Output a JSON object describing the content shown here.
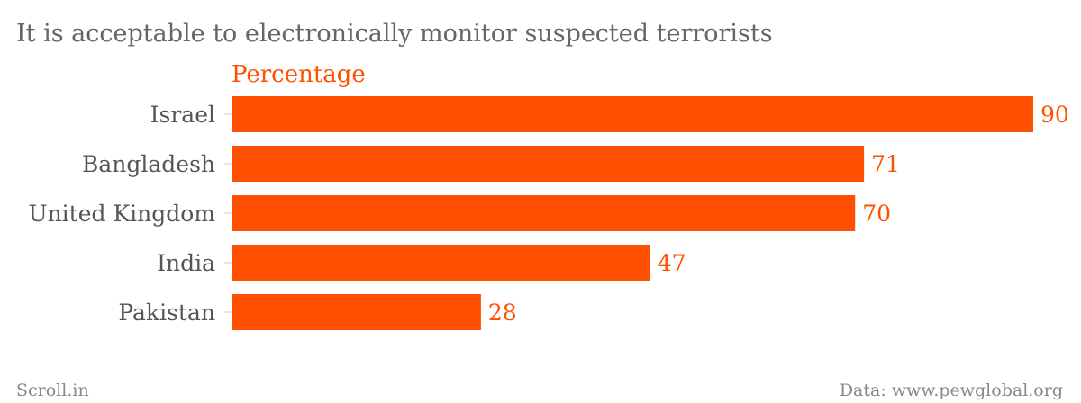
{
  "chart_data": {
    "type": "bar",
    "orientation": "horizontal",
    "title": "It is acceptable to electronically monitor suspected terrorists",
    "categories": [
      "Israel",
      "Bangladesh",
      "United Kingdom",
      "India",
      "Pakistan"
    ],
    "series": [
      {
        "name": "Percentage",
        "values": [
          90,
          71,
          70,
          47,
          28
        ]
      }
    ],
    "xlim": [
      0,
      90
    ],
    "grid": false,
    "data_labels": true
  },
  "footer": {
    "source_left": "Scroll.in",
    "source_right": "Data: www.pewglobal.org"
  },
  "colors": {
    "bar": "#ff4f00",
    "title": "#666666",
    "category_label": "#555555",
    "footer": "#888888"
  }
}
